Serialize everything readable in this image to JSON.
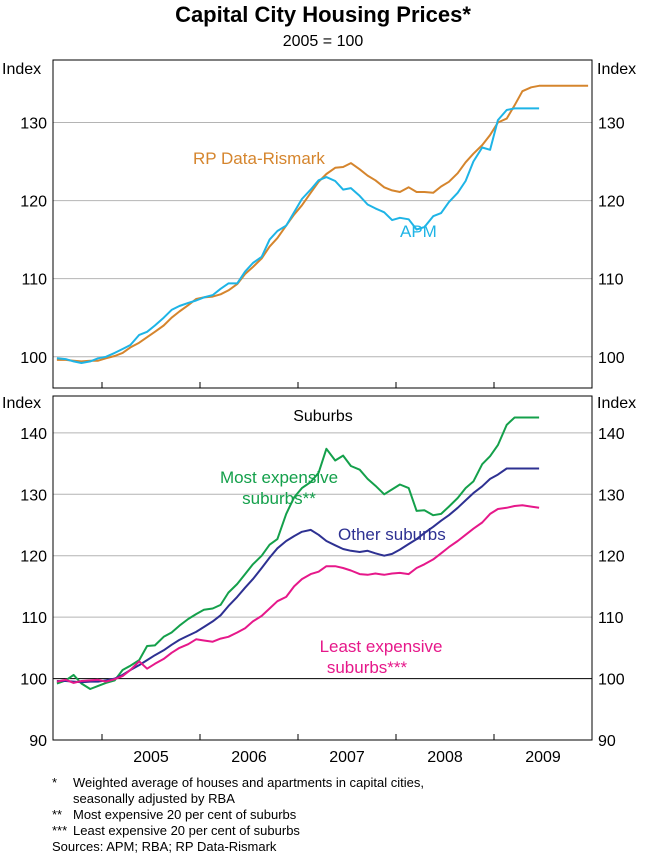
{
  "title": "Capital City Housing Prices*",
  "subtitle": "2005 = 100",
  "colors": {
    "rp": "#d5852d",
    "apm": "#1eb4e6",
    "most": "#14a04b",
    "other": "#2e3192",
    "least": "#e6188a",
    "grid": "#b4b4b4",
    "frame": "#000000"
  },
  "chart_data": [
    {
      "type": "line",
      "panel": "top",
      "axis_label_left": "Index",
      "axis_label_right": "Index",
      "ylim": [
        96,
        138
      ],
      "yticks": [
        100,
        110,
        120,
        130
      ],
      "xlim": [
        2004.5,
        2010.0
      ],
      "grid": true,
      "series": [
        {
          "name": "RP Data-Rismark",
          "label_text": "RP Data-Rismark",
          "color_key": "rp",
          "x": [
            2004.54,
            2004.63,
            2004.71,
            2004.79,
            2004.88,
            2004.96,
            2005.04,
            2005.13,
            2005.21,
            2005.29,
            2005.38,
            2005.46,
            2005.54,
            2005.63,
            2005.71,
            2005.79,
            2005.88,
            2005.96,
            2006.04,
            2006.13,
            2006.21,
            2006.29,
            2006.38,
            2006.46,
            2006.54,
            2006.63,
            2006.71,
            2006.79,
            2006.88,
            2006.96,
            2007.04,
            2007.13,
            2007.21,
            2007.29,
            2007.38,
            2007.46,
            2007.54,
            2007.63,
            2007.71,
            2007.79,
            2007.88,
            2007.96,
            2008.04,
            2008.13,
            2008.21,
            2008.29,
            2008.38,
            2008.46,
            2008.54,
            2008.63,
            2008.71,
            2008.79,
            2008.88,
            2008.96,
            2009.04,
            2009.13,
            2009.21,
            2009.29,
            2009.38,
            2009.46,
            2009.54,
            2009.63,
            2009.71,
            2009.79,
            2009.88,
            2009.96
          ],
          "values": [
            99.6,
            99.6,
            99.5,
            99.4,
            99.5,
            99.5,
            99.8,
            100.1,
            100.5,
            101.2,
            101.8,
            102.5,
            103.2,
            104.0,
            105.0,
            105.8,
            106.6,
            107.4,
            107.6,
            107.7,
            108.0,
            108.5,
            109.3,
            110.6,
            111.5,
            112.6,
            114.1,
            115.2,
            116.8,
            118.2,
            119.4,
            121.0,
            122.4,
            123.4,
            124.2,
            124.3,
            124.8,
            124.0,
            123.2,
            122.6,
            121.7,
            121.3,
            121.1,
            121.7,
            121.1,
            121.1,
            121.0,
            121.8,
            122.4,
            123.5,
            124.9,
            126.0,
            127.1,
            128.4,
            130.0,
            130.5,
            132.2,
            134.0,
            134.5,
            134.7,
            134.7,
            134.7,
            134.7,
            134.7,
            134.7,
            134.7
          ]
        },
        {
          "name": "APM",
          "label_text": "APM",
          "color_key": "apm",
          "x": [
            2004.54,
            2004.63,
            2004.71,
            2004.79,
            2004.88,
            2004.96,
            2005.04,
            2005.13,
            2005.21,
            2005.29,
            2005.38,
            2005.46,
            2005.54,
            2005.63,
            2005.71,
            2005.79,
            2005.88,
            2005.96,
            2006.04,
            2006.13,
            2006.21,
            2006.29,
            2006.38,
            2006.46,
            2006.54,
            2006.63,
            2006.71,
            2006.79,
            2006.88,
            2006.96,
            2007.04,
            2007.13,
            2007.21,
            2007.29,
            2007.38,
            2007.46,
            2007.54,
            2007.63,
            2007.71,
            2007.79,
            2007.88,
            2007.96,
            2008.04,
            2008.13,
            2008.21,
            2008.29,
            2008.38,
            2008.46,
            2008.54,
            2008.63,
            2008.71,
            2008.79,
            2008.88,
            2008.96,
            2009.04,
            2009.13,
            2009.21,
            2009.29,
            2009.38,
            2009.46
          ],
          "values": [
            99.8,
            99.7,
            99.4,
            99.2,
            99.4,
            99.8,
            100.0,
            100.5,
            101.0,
            101.5,
            102.8,
            103.2,
            104.0,
            105.0,
            106.0,
            106.5,
            106.9,
            107.2,
            107.6,
            107.9,
            108.7,
            109.4,
            109.4,
            110.9,
            112.0,
            112.8,
            115.0,
            116.1,
            116.8,
            118.5,
            120.2,
            121.4,
            122.6,
            123.0,
            122.5,
            121.4,
            121.6,
            120.6,
            119.5,
            119.0,
            118.5,
            117.5,
            117.8,
            117.6,
            116.3,
            116.6,
            118.0,
            118.4,
            119.8,
            121.0,
            122.5,
            125.0,
            126.8,
            126.5,
            130.3,
            131.6,
            131.8,
            131.8,
            131.8,
            131.8
          ]
        }
      ]
    },
    {
      "type": "line",
      "panel": "bottom",
      "panel_title": "Suburbs",
      "axis_label_left": "Index",
      "axis_label_right": "Index",
      "ylim": [
        90,
        146
      ],
      "yticks": [
        90,
        100,
        110,
        120,
        130,
        140
      ],
      "xlim": [
        2004.5,
        2010.0
      ],
      "xticks": [
        "2005",
        "2006",
        "2007",
        "2008",
        "2009"
      ],
      "grid": true,
      "series": [
        {
          "name": "Most expensive suburbs**",
          "label_lines": [
            "Most expensive",
            "suburbs**"
          ],
          "color_key": "most",
          "x": [
            2004.54,
            2004.63,
            2004.71,
            2004.79,
            2004.88,
            2004.96,
            2005.04,
            2005.13,
            2005.21,
            2005.29,
            2005.38,
            2005.46,
            2005.54,
            2005.63,
            2005.71,
            2005.79,
            2005.88,
            2005.96,
            2006.04,
            2006.13,
            2006.21,
            2006.29,
            2006.38,
            2006.46,
            2006.54,
            2006.63,
            2006.71,
            2006.79,
            2006.88,
            2006.96,
            2007.04,
            2007.13,
            2007.21,
            2007.29,
            2007.38,
            2007.46,
            2007.54,
            2007.63,
            2007.71,
            2007.79,
            2007.88,
            2007.96,
            2008.04,
            2008.13,
            2008.21,
            2008.29,
            2008.38,
            2008.46,
            2008.54,
            2008.63,
            2008.71,
            2008.79,
            2008.88,
            2008.96,
            2009.04,
            2009.13,
            2009.21,
            2009.29,
            2009.38,
            2009.46
          ],
          "values": [
            99.2,
            99.7,
            100.6,
            99.2,
            98.3,
            98.8,
            99.3,
            99.7,
            101.4,
            102.1,
            103.0,
            105.3,
            105.4,
            106.8,
            107.5,
            108.6,
            109.7,
            110.5,
            111.2,
            111.4,
            112.0,
            114.0,
            115.4,
            117.0,
            118.6,
            120.0,
            121.8,
            122.7,
            126.8,
            129.5,
            131.0,
            132.0,
            133.5,
            137.4,
            135.5,
            136.3,
            134.6,
            134.0,
            132.5,
            131.4,
            130.0,
            130.8,
            131.6,
            131.0,
            127.3,
            127.4,
            126.6,
            126.8,
            128.0,
            129.4,
            131.0,
            132.1,
            134.9,
            136.2,
            138.0,
            141.3,
            142.5,
            142.5,
            142.5,
            142.5
          ]
        },
        {
          "name": "Other suburbs",
          "label_text": "Other suburbs",
          "color_key": "other",
          "x": [
            2004.54,
            2004.63,
            2004.71,
            2004.79,
            2004.88,
            2004.96,
            2005.04,
            2005.13,
            2005.21,
            2005.29,
            2005.38,
            2005.46,
            2005.54,
            2005.63,
            2005.71,
            2005.79,
            2005.88,
            2005.96,
            2006.04,
            2006.13,
            2006.21,
            2006.29,
            2006.38,
            2006.46,
            2006.54,
            2006.63,
            2006.71,
            2006.79,
            2006.88,
            2006.96,
            2007.04,
            2007.13,
            2007.21,
            2007.29,
            2007.38,
            2007.46,
            2007.54,
            2007.63,
            2007.71,
            2007.79,
            2007.88,
            2007.96,
            2008.04,
            2008.13,
            2008.21,
            2008.29,
            2008.38,
            2008.46,
            2008.54,
            2008.63,
            2008.71,
            2008.79,
            2008.88,
            2008.96,
            2009.04,
            2009.13,
            2009.21,
            2009.29,
            2009.38,
            2009.46
          ],
          "values": [
            99.6,
            99.6,
            99.5,
            99.4,
            99.5,
            99.5,
            99.7,
            100.0,
            100.6,
            101.4,
            102.2,
            103.0,
            103.8,
            104.6,
            105.5,
            106.3,
            107.0,
            107.6,
            108.4,
            109.3,
            110.3,
            111.8,
            113.3,
            114.8,
            116.2,
            118.0,
            119.7,
            121.2,
            122.4,
            123.2,
            123.9,
            124.2,
            123.4,
            122.4,
            121.7,
            121.1,
            120.8,
            120.6,
            120.8,
            120.4,
            120.0,
            120.3,
            121.0,
            121.9,
            122.7,
            123.7,
            124.7,
            125.7,
            126.6,
            127.8,
            129.0,
            130.2,
            131.3,
            132.5,
            133.2,
            134.2,
            134.2,
            134.2,
            134.2,
            134.2
          ]
        },
        {
          "name": "Least expensive suburbs***",
          "label_lines": [
            "Least expensive",
            "suburbs***"
          ],
          "color_key": "least",
          "x": [
            2004.54,
            2004.63,
            2004.71,
            2004.79,
            2004.88,
            2004.96,
            2005.04,
            2005.13,
            2005.21,
            2005.29,
            2005.38,
            2005.46,
            2005.54,
            2005.63,
            2005.71,
            2005.79,
            2005.88,
            2005.96,
            2006.04,
            2006.13,
            2006.21,
            2006.29,
            2006.38,
            2006.46,
            2006.54,
            2006.63,
            2006.71,
            2006.79,
            2006.88,
            2006.96,
            2007.04,
            2007.13,
            2007.21,
            2007.29,
            2007.38,
            2007.46,
            2007.54,
            2007.63,
            2007.71,
            2007.79,
            2007.88,
            2007.96,
            2008.04,
            2008.13,
            2008.21,
            2008.29,
            2008.38,
            2008.46,
            2008.54,
            2008.63,
            2008.71,
            2008.79,
            2008.88,
            2008.96,
            2009.04,
            2009.13,
            2009.21,
            2009.29,
            2009.38,
            2009.46
          ],
          "values": [
            99.5,
            99.8,
            99.3,
            99.6,
            99.7,
            99.8,
            99.5,
            99.9,
            100.4,
            101.4,
            102.8,
            101.6,
            102.4,
            103.2,
            104.2,
            105.0,
            105.6,
            106.4,
            106.2,
            106.0,
            106.5,
            106.8,
            107.5,
            108.2,
            109.3,
            110.2,
            111.4,
            112.6,
            113.3,
            115.0,
            116.2,
            117.0,
            117.4,
            118.3,
            118.3,
            118.0,
            117.6,
            117.0,
            116.9,
            117.1,
            116.9,
            117.1,
            117.2,
            117.0,
            118.0,
            118.6,
            119.4,
            120.4,
            121.4,
            122.4,
            123.4,
            124.4,
            125.4,
            126.8,
            127.6,
            127.8,
            128.1,
            128.2,
            128.0,
            127.8
          ]
        }
      ]
    }
  ],
  "footnotes": [
    {
      "marker": "*",
      "lines": [
        "Weighted average of houses and apartments in capital cities,",
        "seasonally adjusted by RBA"
      ]
    },
    {
      "marker": "**",
      "lines": [
        "Most expensive 20 per cent of suburbs"
      ]
    },
    {
      "marker": "***",
      "lines": [
        "Least expensive 20 per cent of suburbs"
      ]
    }
  ],
  "sources": "Sources: APM; RBA; RP Data-Rismark"
}
